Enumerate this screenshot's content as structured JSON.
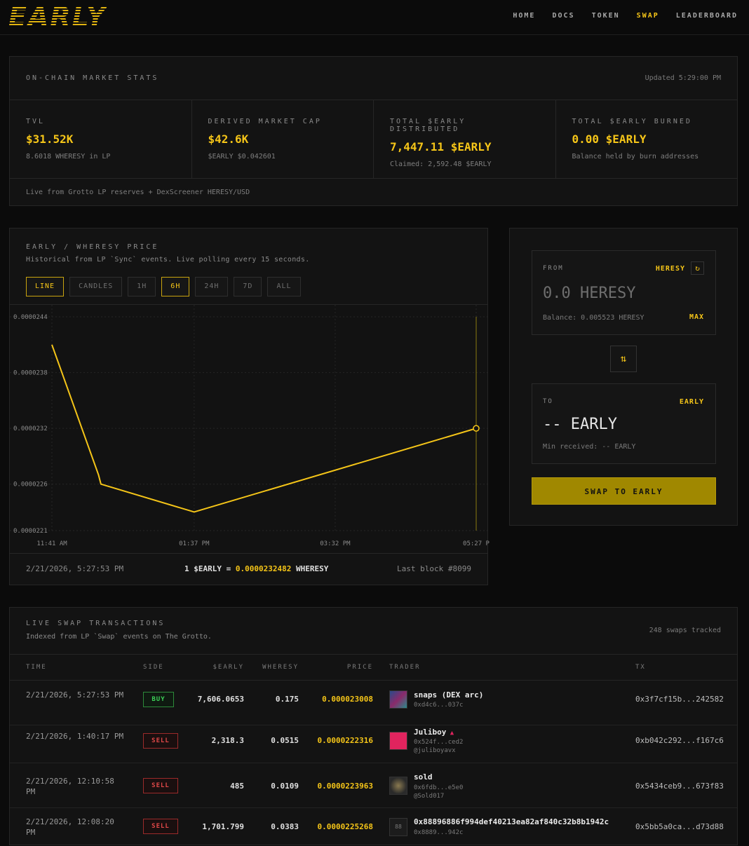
{
  "header": {
    "logo": "EARLY",
    "nav": [
      "HOME",
      "DOCS",
      "TOKEN",
      "SWAP",
      "LEADERBOARD"
    ],
    "active_nav": "SWAP"
  },
  "stats": {
    "title": "ON-CHAIN MARKET STATS",
    "updated": "Updated 5:29:00 PM",
    "cells": [
      {
        "label": "TVL",
        "value": "$31.52K",
        "sub": "8.6018 WHERESY in LP"
      },
      {
        "label": "DERIVED MARKET CAP",
        "value": "$42.6K",
        "sub": "$EARLY $0.042601"
      },
      {
        "label": "TOTAL $EARLY DISTRIBUTED",
        "value": "7,447.11 $EARLY",
        "sub": "Claimed: 2,592.48 $EARLY"
      },
      {
        "label": "TOTAL $EARLY BURNED",
        "value": "0.00 $EARLY",
        "sub": "Balance held by burn addresses"
      }
    ],
    "footer": "Live from Grotto LP reserves + DexScreener HERESY/USD"
  },
  "chart": {
    "title": "EARLY / WHERESY PRICE",
    "subtitle": "Historical from LP `Sync` events. Live polling every 15 seconds.",
    "timeframes": [
      "LINE",
      "CANDLES",
      "1H",
      "6H",
      "24H",
      "7D",
      "ALL"
    ],
    "footer_date": "2/21/2026, 5:27:53 PM",
    "footer_price_prefix": "1 $EARLY = ",
    "footer_price_value": "0.0000232482",
    "footer_price_suffix": " WHERESY",
    "footer_block": "Last block #8099"
  },
  "chart_data": {
    "type": "line",
    "y_ticks": [
      "0.0000244",
      "0.0000238",
      "0.0000232",
      "0.0000226",
      "0.0000221"
    ],
    "x_ticks": [
      "11:41 AM",
      "01:37 PM",
      "03:32 PM",
      "05:27 P"
    ],
    "ylim": [
      2.21e-05,
      2.44e-05
    ],
    "x": [
      "11:41 AM",
      "12:19 PM",
      "12:21 PM",
      "01:37 PM",
      "05:27 PM"
    ],
    "values": [
      2.41e-05,
      2.27e-05,
      2.26e-05,
      2.23e-05,
      2.32e-05
    ],
    "line_color": "#f5c518",
    "grid": true
  },
  "swap": {
    "from_label": "FROM",
    "from_token": "HERESY",
    "from_amount": "0.0 HERESY",
    "balance": "Balance: 0.005523 HERESY",
    "max": "MAX",
    "refresh_icon": "↻",
    "flip_icon": "⇅",
    "to_label": "TO",
    "to_token": "EARLY",
    "to_amount": "-- EARLY",
    "min_received": "Min received: -- EARLY",
    "button": "SWAP TO EARLY"
  },
  "transactions": {
    "title": "LIVE SWAP TRANSACTIONS",
    "subtitle": "Indexed from LP `Swap` events on The Grotto.",
    "count": "248 swaps tracked",
    "headers": [
      "TIME",
      "SIDE",
      "$EARLY",
      "WHERESY",
      "PRICE",
      "TRADER",
      "TX"
    ],
    "rows": [
      {
        "time": "2/21/2026, 5:27:53 PM",
        "side": "BUY",
        "early": "7,606.0653",
        "wheresy": "0.175",
        "price": "0.000023008",
        "trader": "snaps (DEX arc)",
        "addr": "0xd4c6...037c",
        "handle": "",
        "tx": "0x3f7cf15b...242582"
      },
      {
        "time": "2/21/2026, 1:40:17 PM",
        "side": "SELL",
        "early": "2,318.3",
        "wheresy": "0.0515",
        "price": "0.0000222316",
        "trader": "Juliboy",
        "addr": "0x524f...ced2",
        "handle": "@juliboyavx",
        "tx": "0xb042c292...f167c6"
      },
      {
        "time": "2/21/2026, 12:10:58 PM",
        "side": "SELL",
        "early": "485",
        "wheresy": "0.0109",
        "price": "0.0000223963",
        "trader": "sold",
        "addr": "0x6fdb...e5e0",
        "handle": "@Sold017",
        "tx": "0x5434ceb9...673f83"
      },
      {
        "time": "2/21/2026, 12:08:20 PM",
        "side": "SELL",
        "early": "1,701.799",
        "wheresy": "0.0383",
        "price": "0.0000225268",
        "trader": "0x88896886f994def40213ea82af840c32b8b1942c",
        "addr": "0x8889...942c",
        "handle": "",
        "tx": "0x5bb5a0ca...d73d88",
        "avatar_text": "88"
      }
    ]
  }
}
